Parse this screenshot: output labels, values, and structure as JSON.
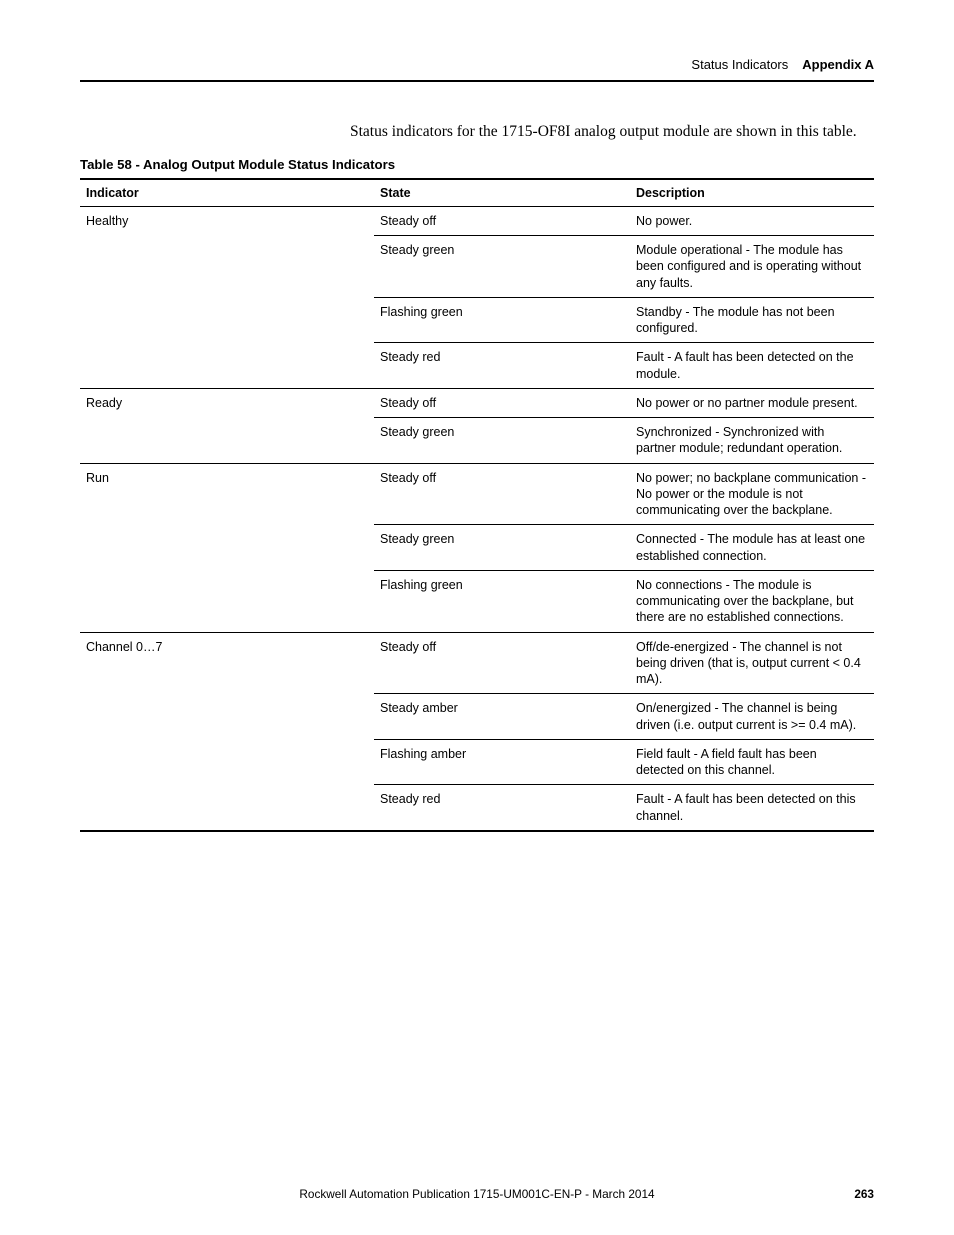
{
  "header": {
    "section": "Status Indicators",
    "appendix": "Appendix A"
  },
  "intro": "Status indicators for the 1715-OF8I analog output module are shown in this table.",
  "table": {
    "caption": "Table 58 - Analog Output Module Status Indicators",
    "columns": [
      "Indicator",
      "State",
      "Description"
    ],
    "rows": [
      {
        "group_start": true,
        "indicator": "Healthy",
        "state": "Steady off",
        "description": "No power."
      },
      {
        "group_start": false,
        "indicator": "",
        "state": "Steady green",
        "description": "Module operational - The module has been configured and is operating without any faults."
      },
      {
        "group_start": false,
        "indicator": "",
        "state": "Flashing green",
        "description": "Standby - The module has not been configured."
      },
      {
        "group_start": false,
        "indicator": "",
        "state": "Steady red",
        "description": "Fault - A fault has been detected on the module."
      },
      {
        "group_start": true,
        "indicator": "Ready",
        "state": "Steady off",
        "description": "No power or no partner module present."
      },
      {
        "group_start": false,
        "indicator": "",
        "state": "Steady green",
        "description": "Synchronized - Synchronized with partner module; redundant operation."
      },
      {
        "group_start": true,
        "indicator": "Run",
        "state": "Steady off",
        "description": "No power; no backplane communication - No power or the module is not communicating over the backplane."
      },
      {
        "group_start": false,
        "indicator": "",
        "state": "Steady green",
        "description": "Connected - The module has at least one established connection."
      },
      {
        "group_start": false,
        "indicator": "",
        "state": "Flashing green",
        "description": "No connections - The module is communicating over the backplane, but there are no established connections."
      },
      {
        "group_start": true,
        "indicator": "Channel 0…7",
        "state": "Steady off",
        "description": "Off/de-energized - The channel is not being driven (that is, output current < 0.4 mA)."
      },
      {
        "group_start": false,
        "indicator": "",
        "state": "Steady amber",
        "description": "On/energized - The channel is being driven (i.e. output current is >= 0.4 mA)."
      },
      {
        "group_start": false,
        "indicator": "",
        "state": "Flashing amber",
        "description": "Field fault - A field fault has been detected on this channel."
      },
      {
        "group_start": false,
        "indicator": "",
        "state": "Steady red",
        "description": "Fault - A fault has been detected on this channel."
      }
    ]
  },
  "footer": {
    "publication": "Rockwell Automation Publication 1715-UM001C-EN-P - March 2014",
    "page": "263"
  }
}
